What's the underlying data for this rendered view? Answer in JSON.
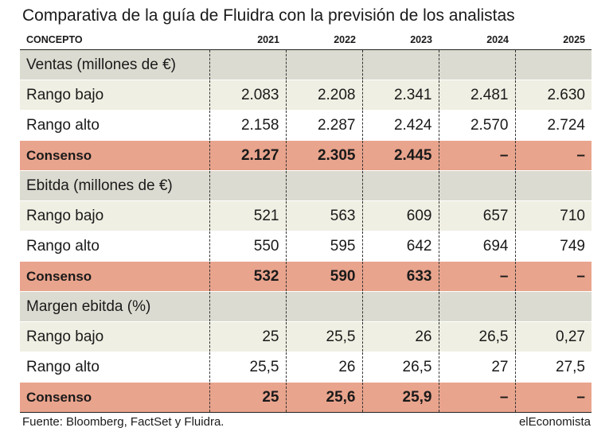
{
  "title": "Comparativa de la guía de Fluidra con la previsión de los analistas",
  "table": {
    "header": [
      "CONCEPTO",
      "2021",
      "2022",
      "2023",
      "2024",
      "2025"
    ],
    "rows": [
      {
        "type": "section",
        "cells": [
          "Ventas (millones de €)",
          "",
          "",
          "",
          "",
          ""
        ]
      },
      {
        "type": "low",
        "cells": [
          "Rango bajo",
          "2.083",
          "2.208",
          "2.341",
          "2.481",
          "2.630"
        ]
      },
      {
        "type": "high",
        "cells": [
          "Rango alto",
          "2.158",
          "2.287",
          "2.424",
          "2.570",
          "2.724"
        ]
      },
      {
        "type": "consensus",
        "cells": [
          "Consenso",
          "2.127",
          "2.305",
          "2.445",
          "–",
          "–"
        ]
      },
      {
        "type": "section",
        "cells": [
          "Ebitda (millones de €)",
          "",
          "",
          "",
          "",
          ""
        ]
      },
      {
        "type": "low",
        "cells": [
          "Rango bajo",
          "521",
          "563",
          "609",
          "657",
          "710"
        ]
      },
      {
        "type": "high",
        "cells": [
          "Rango alto",
          "550",
          "595",
          "642",
          "694",
          "749"
        ]
      },
      {
        "type": "consensus",
        "cells": [
          "Consenso",
          "532",
          "590",
          "633",
          "–",
          "–"
        ]
      },
      {
        "type": "section",
        "cells": [
          "Margen ebitda (%)",
          "",
          "",
          "",
          "",
          ""
        ]
      },
      {
        "type": "low",
        "cells": [
          "Rango bajo",
          "25",
          "25,5",
          "26",
          "26,5",
          "0,27"
        ]
      },
      {
        "type": "high",
        "cells": [
          "Rango alto",
          "25,5",
          "26",
          "26,5",
          "27",
          "27,5"
        ]
      },
      {
        "type": "consensus",
        "cells": [
          "Consenso",
          "25",
          "25,6",
          "25,9",
          "–",
          "–"
        ]
      }
    ]
  },
  "footer": {
    "source": "Fuente: Bloomberg, FactSet y Fluidra.",
    "brand": "elEconomista"
  },
  "colors": {
    "section_row": "#dcdbd1",
    "low_row": "#f0efe3",
    "consensus_row": "#e9a48d"
  }
}
